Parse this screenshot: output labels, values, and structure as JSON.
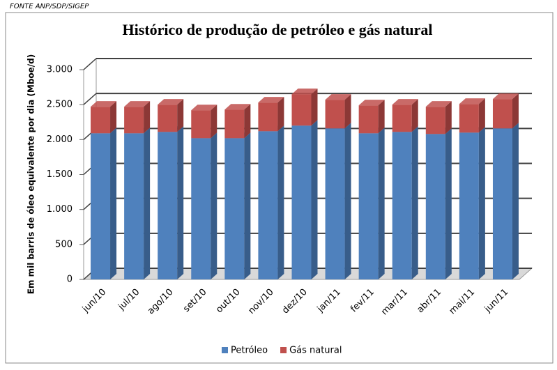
{
  "chart_data": {
    "type": "bar3d_stacked",
    "source": "FONTE ANP/SDP/SIGEP",
    "title": "Histórico de produção de petróleo e gás natural",
    "y_label": "Em mil barris de óleo equivalente por dia (Mboe/d)",
    "categories": [
      "jun/10",
      "jul/10",
      "ago/10",
      "set/10",
      "out/10",
      "nov/10",
      "dez/10",
      "jan/11",
      "fev/11",
      "mar/11",
      "abr/11",
      "mai/11",
      "jun/11"
    ],
    "series": [
      {
        "name": "Petróleo",
        "color": "#4f81bd",
        "side": "#385d8a",
        "values": [
          2090,
          2090,
          2110,
          2020,
          2020,
          2120,
          2200,
          2160,
          2090,
          2110,
          2080,
          2100,
          2160
        ]
      },
      {
        "name": "Gás natural",
        "color": "#c0504d",
        "side": "#8c3836",
        "values": [
          380,
          380,
          390,
          400,
          410,
          410,
          450,
          410,
          400,
          390,
          390,
          410,
          420
        ]
      }
    ],
    "ylim": [
      0,
      3000
    ],
    "yticks": [
      0,
      500,
      {
        "value": 1000,
        "label": "1.000"
      },
      {
        "value": 1500,
        "label": "1.500"
      },
      {
        "value": 2000,
        "label": "2.000"
      },
      {
        "value": 2500,
        "label": "2.500"
      },
      {
        "value": 3000,
        "label": "3.000"
      }
    ],
    "grid": true,
    "legend": "bottom"
  }
}
